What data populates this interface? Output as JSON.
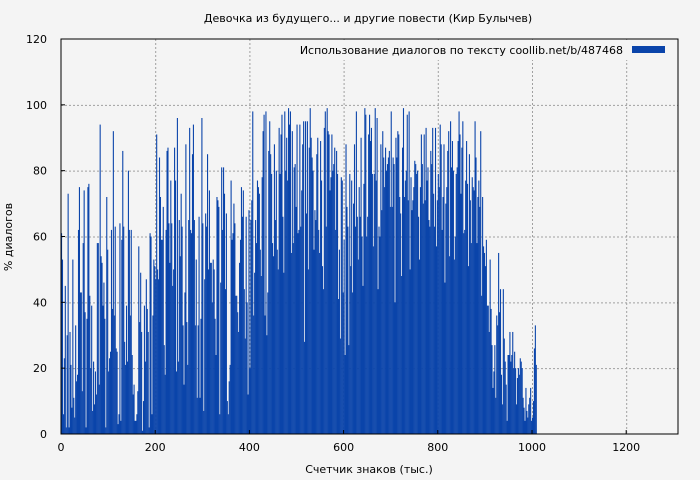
{
  "chart_data": {
    "type": "bar",
    "title": "Девочка из будущего... и другие повести (Кир Булычев)",
    "xlabel": "Счетчик знаков (тыс.)",
    "ylabel": "% диалогов",
    "xlim": [
      0,
      1310
    ],
    "ylim": [
      0,
      120
    ],
    "xticks": [
      0,
      200,
      400,
      600,
      800,
      1000,
      1200
    ],
    "yticks": [
      0,
      20,
      40,
      60,
      80,
      100,
      120
    ],
    "grid": true,
    "legend_position": "top-right",
    "colors": {
      "series": "#0a44aa",
      "background": "#f4f4f4",
      "plot_background": "#f4f4f4",
      "grid": "#a0a0a0"
    },
    "series": [
      {
        "name": "Использование диалогов по тексту  coollib.net/b/487468",
        "x_start": 0,
        "x_step": 2,
        "values": [
          61,
          53,
          6,
          23,
          45,
          2,
          30,
          73,
          2,
          31,
          21,
          8,
          53,
          11,
          5,
          33,
          16,
          18,
          62,
          75,
          43,
          43,
          13,
          58,
          74,
          37,
          2,
          35,
          75,
          76,
          42,
          20,
          39,
          7,
          22,
          9,
          19,
          12,
          58,
          58,
          15,
          94,
          54,
          52,
          39,
          46,
          35,
          2,
          72,
          56,
          19,
          23,
          25,
          62,
          38,
          92,
          36,
          63,
          26,
          25,
          3,
          6,
          64,
          4,
          59,
          86,
          63,
          28,
          21,
          39,
          22,
          80,
          62,
          36,
          62,
          24,
          12,
          15,
          4,
          4,
          6,
          13,
          57,
          34,
          49,
          31,
          1,
          10,
          39,
          22,
          47,
          38,
          31,
          2,
          61,
          60,
          6,
          36,
          53,
          51,
          47,
          91,
          50,
          47,
          84,
          72,
          59,
          59,
          69,
          27,
          18,
          62,
          86,
          87,
          64,
          52,
          77,
          64,
          45,
          50,
          87,
          77,
          19,
          96,
          22,
          65,
          54,
          73,
          63,
          33,
          15,
          43,
          88,
          34,
          21,
          65,
          93,
          62,
          61,
          85,
          94,
          65,
          33,
          53,
          11,
          33,
          66,
          11,
          35,
          96,
          64,
          7,
          47,
          67,
          63,
          85,
          50,
          74,
          52,
          52,
          40,
          53,
          50,
          35,
          24,
          72,
          71,
          69,
          6,
          46,
          81,
          62,
          81,
          73,
          44,
          67,
          10,
          6,
          16,
          21,
          77,
          59,
          61,
          70,
          64,
          42,
          42,
          37,
          31,
          52,
          59,
          75,
          66,
          74,
          44,
          29,
          66,
          40,
          12,
          68,
          20,
          65,
          71,
          98,
          36,
          49,
          65,
          58,
          77,
          75,
          73,
          56,
          48,
          78,
          92,
          97,
          36,
          98,
          30,
          43,
          86,
          95,
          85,
          79,
          58,
          54,
          88,
          65,
          80,
          56,
          50,
          93,
          79,
          91,
          97,
          66,
          49,
          98,
          80,
          90,
          77,
          99,
          94,
          98,
          55,
          92,
          58,
          81,
          82,
          69,
          94,
          61,
          62,
          94,
          63,
          74,
          88,
          95,
          28,
          95,
          67,
          95,
          50,
          87,
          99,
          90,
          84,
          80,
          56,
          68,
          65,
          85,
          90,
          62,
          55,
          89,
          77,
          51,
          44,
          93,
          98,
          63,
          99,
          92,
          91,
          74,
          78,
          91,
          80,
          82,
          87,
          62,
          86,
          79,
          41,
          56,
          29,
          78,
          77,
          43,
          59,
          24,
          88,
          69,
          63,
          27,
          79,
          51,
          77,
          43,
          70,
          88,
          63,
          98,
          66,
          53,
          75,
          66,
          90,
          60,
          45,
          76,
          99,
          97,
          60,
          66,
          91,
          97,
          89,
          93,
          79,
          57,
          79,
          99,
          77,
          96,
          44,
          63,
          60,
          88,
          68,
          92,
          84,
          75,
          87,
          80,
          82,
          84,
          86,
          69,
          98,
          69,
          84,
          82,
          40,
          90,
          84,
          92,
          91,
          72,
          67,
          48,
          87,
          99,
          72,
          77,
          80,
          97,
          71,
          98,
          50,
          78,
          68,
          71,
          75,
          83,
          82,
          79,
          80,
          66,
          53,
          75,
          91,
          82,
          70,
          91,
          71,
          93,
          77,
          81,
          65,
          63,
          86,
          82,
          93,
          73,
          63,
          93,
          57,
          71,
          79,
          75,
          94,
          88,
          62,
          72,
          88,
          46,
          70,
          75,
          86,
          92,
          54,
          95,
          81,
          89,
          80,
          53,
          60,
          79,
          81,
          89,
          98,
          91,
          73,
          87,
          95,
          61,
          62,
          77,
          89,
          76,
          51,
          85,
          71,
          58,
          78,
          75,
          74,
          95,
          84,
          58,
          72,
          77,
          69,
          92,
          42,
          72,
          57,
          55,
          51,
          59,
          39,
          39,
          31,
          53,
          38,
          27,
          14,
          19,
          27,
          11,
          36,
          33,
          55,
          37,
          44,
          18,
          9,
          44,
          29,
          22,
          15,
          4,
          24,
          24,
          31,
          22,
          24,
          31,
          20,
          25,
          20,
          9,
          17,
          20,
          18,
          23,
          22,
          20,
          11,
          8,
          4,
          14,
          7,
          5,
          9,
          11,
          14,
          4,
          5,
          10,
          26,
          33,
          21,
          0,
          0,
          0,
          0,
          0,
          0,
          0,
          0,
          0,
          0,
          0,
          0,
          0,
          0,
          0,
          0,
          0,
          0,
          0,
          0,
          0,
          0,
          0,
          0,
          0,
          0,
          0,
          0,
          0,
          0,
          0,
          0,
          0,
          0,
          0,
          0,
          0,
          0,
          0,
          0,
          0,
          0,
          0,
          0,
          0,
          0,
          0,
          0,
          0,
          0,
          0,
          0,
          0,
          0,
          0,
          0,
          0,
          0,
          0,
          0,
          0,
          0,
          0,
          0,
          0,
          0,
          0,
          0,
          0,
          0,
          0,
          0,
          0,
          0,
          0,
          0,
          0,
          0,
          0,
          0,
          0,
          0,
          0,
          0,
          0,
          0,
          0,
          0,
          0,
          0,
          0,
          0,
          0,
          0,
          0,
          0,
          0,
          0,
          0,
          0,
          0,
          0,
          0,
          0,
          0,
          0,
          0,
          0,
          0,
          0,
          0,
          0,
          0,
          0,
          0,
          0,
          0,
          0,
          0,
          0,
          0,
          0,
          0,
          0,
          0,
          0,
          0,
          0,
          0,
          0,
          0,
          0,
          0,
          0,
          0,
          0,
          0,
          0,
          0,
          0,
          0,
          0,
          0,
          0,
          0,
          0,
          0,
          0,
          0,
          0,
          0,
          0,
          0,
          0,
          0,
          0,
          0,
          0,
          0,
          0,
          0,
          0,
          0,
          0,
          0,
          0,
          0,
          0,
          0,
          0,
          0,
          0,
          0,
          0,
          0,
          0,
          0,
          0,
          0,
          0,
          0,
          0,
          0,
          0,
          0,
          0,
          0,
          0,
          0,
          0,
          0,
          0,
          0,
          0,
          0,
          0,
          0,
          0,
          0,
          0,
          0,
          0
        ]
      }
    ]
  }
}
